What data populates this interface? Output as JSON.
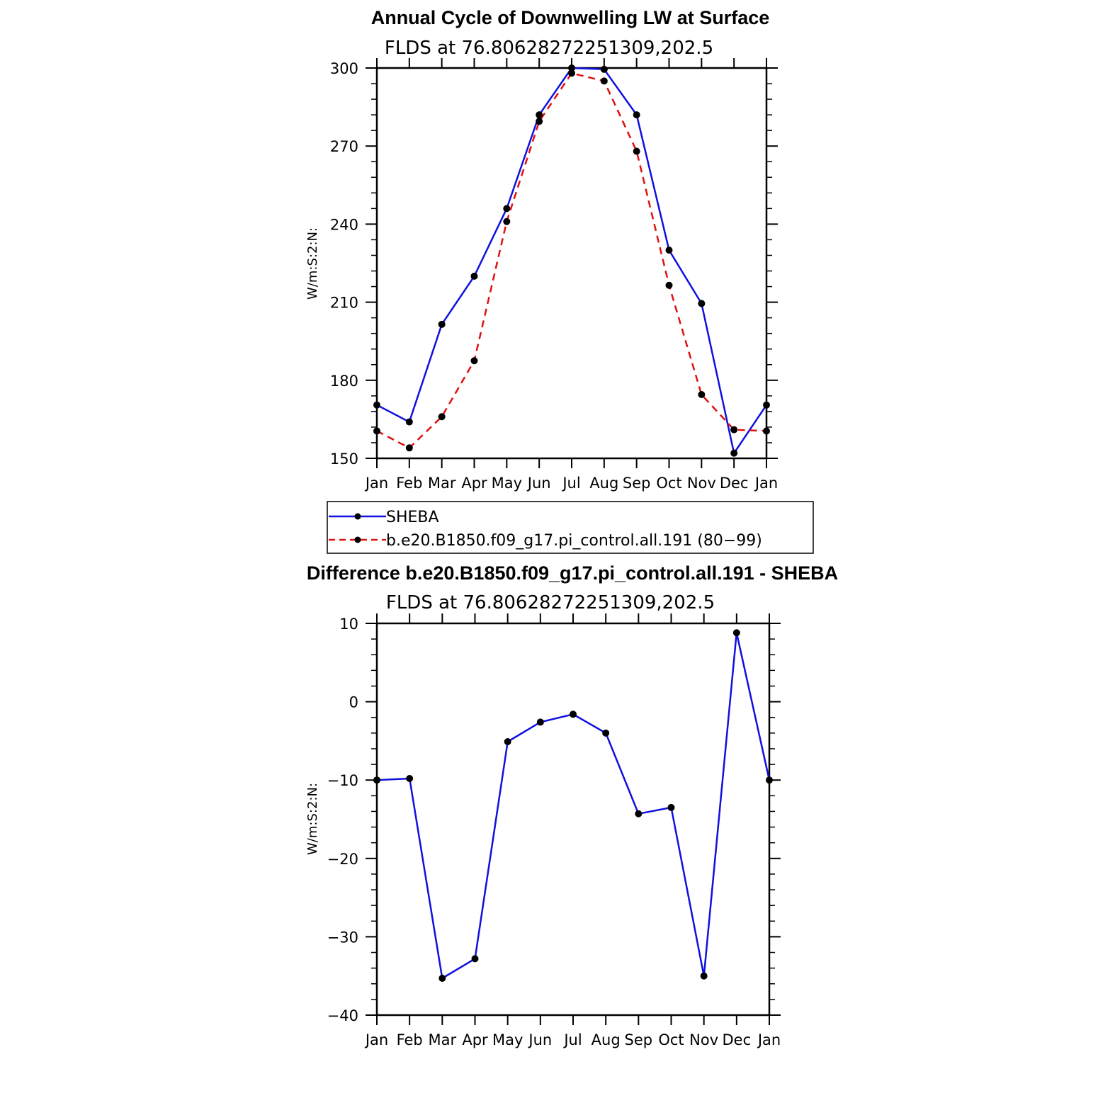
{
  "colors": {
    "series1": "#1010e0",
    "series2": "#e01010",
    "marker": "#000000",
    "axis": "#000000"
  },
  "legend": {
    "items": [
      {
        "label": "SHEBA",
        "color": "#1010e0",
        "style": "solid"
      },
      {
        "label": "b.e20.B1850.f09_g17.pi_control.all.191 (80−99)",
        "color": "#e01010",
        "style": "dashed"
      }
    ]
  },
  "chart_data": [
    {
      "type": "line",
      "title": "Annual Cycle of Downwelling LW at Surface",
      "subtitle": "FLDS at 76.80628272251309,202.5",
      "ylabel": "W/m:S:2:N:",
      "xlabel": "",
      "categories": [
        "Jan",
        "Feb",
        "Mar",
        "Apr",
        "May",
        "Jun",
        "Jul",
        "Aug",
        "Sep",
        "Oct",
        "Nov",
        "Dec",
        "Jan"
      ],
      "ylim": [
        150,
        300
      ],
      "yticks": [
        150,
        180,
        210,
        240,
        270,
        300
      ],
      "ytick_labels": [
        "150",
        "180",
        "210",
        "240",
        "270",
        "300"
      ],
      "legend_position": "bottom",
      "series": [
        {
          "name": "SHEBA",
          "values": [
            170.5,
            164,
            201.5,
            220,
            246,
            282,
            300,
            299.5,
            282,
            230,
            209.5,
            152,
            170.5
          ]
        },
        {
          "name": "b.e20.B1850.f09_g17.pi_control.all.191 (80−99)",
          "values": [
            160.5,
            154,
            166,
            187.5,
            241,
            279.5,
            298,
            295,
            268,
            216.5,
            174.5,
            161,
            160.5
          ]
        }
      ]
    },
    {
      "type": "line",
      "title": "Difference b.e20.B1850.f09_g17.pi_control.all.191 - SHEBA",
      "subtitle": "FLDS at 76.80628272251309,202.5",
      "ylabel": "W/m:S:2:N:",
      "xlabel": "",
      "categories": [
        "Jan",
        "Feb",
        "Mar",
        "Apr",
        "May",
        "Jun",
        "Jul",
        "Aug",
        "Sep",
        "Oct",
        "Nov",
        "Dec",
        "Jan"
      ],
      "ylim": [
        -40,
        10
      ],
      "yticks": [
        -40,
        -30,
        -20,
        -10,
        0,
        10
      ],
      "ytick_labels": [
        "−40",
        "−30",
        "−20",
        "−10",
        "0",
        "10"
      ],
      "series": [
        {
          "values": [
            -10,
            -9.8,
            -35.3,
            -32.8,
            -5.1,
            -2.6,
            -1.6,
            -4,
            -14.3,
            -13.5,
            -35,
            8.8,
            -10
          ]
        }
      ]
    }
  ]
}
